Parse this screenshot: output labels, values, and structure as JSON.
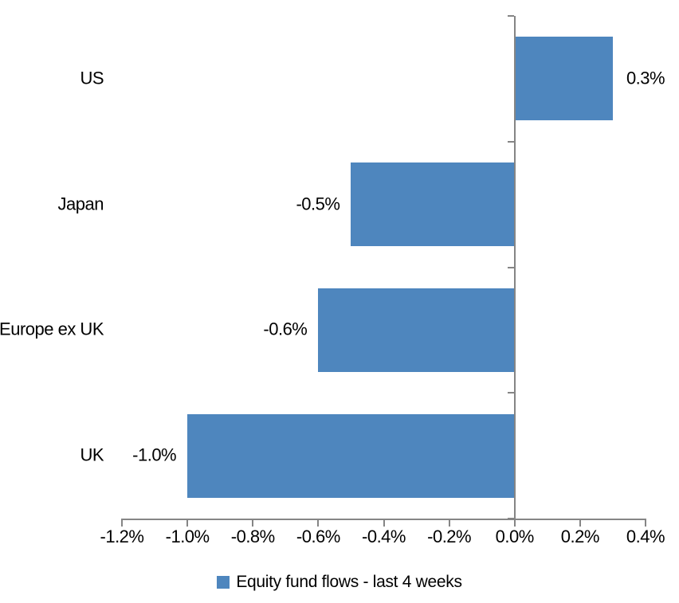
{
  "chart_data": {
    "type": "bar",
    "orientation": "horizontal",
    "title": "",
    "categories": [
      "US",
      "Japan",
      "Europe ex UK",
      "UK"
    ],
    "values": [
      0.3,
      -0.5,
      -0.6,
      -1.0
    ],
    "value_labels": [
      "0.3%",
      "-0.5%",
      "-0.6%",
      "-1.0%"
    ],
    "series": [
      {
        "name": "Equity fund flows - last 4 weeks",
        "values": [
          0.3,
          -0.5,
          -0.6,
          -1.0
        ]
      }
    ],
    "xlabel": "",
    "ylabel": "",
    "xlim": [
      -1.2,
      0.4
    ],
    "x_ticks": [
      -1.2,
      -1.0,
      -0.8,
      -0.6,
      -0.4,
      -0.2,
      0.0,
      0.2,
      0.4
    ],
    "x_tick_labels": [
      "-1.2%",
      "-1.0%",
      "-0.8%",
      "-0.6%",
      "-0.4%",
      "-0.2%",
      "0.0%",
      "0.2%",
      "0.4%"
    ],
    "grid": false,
    "legend_position": "bottom",
    "legend": {
      "label": "Equity fund flows - last 4 weeks",
      "swatch_color": "#4E86BE"
    },
    "colors": {
      "bar": "#4E86BE",
      "axis": "#858585",
      "text": "#000000",
      "background": "#FFFFFF"
    }
  }
}
